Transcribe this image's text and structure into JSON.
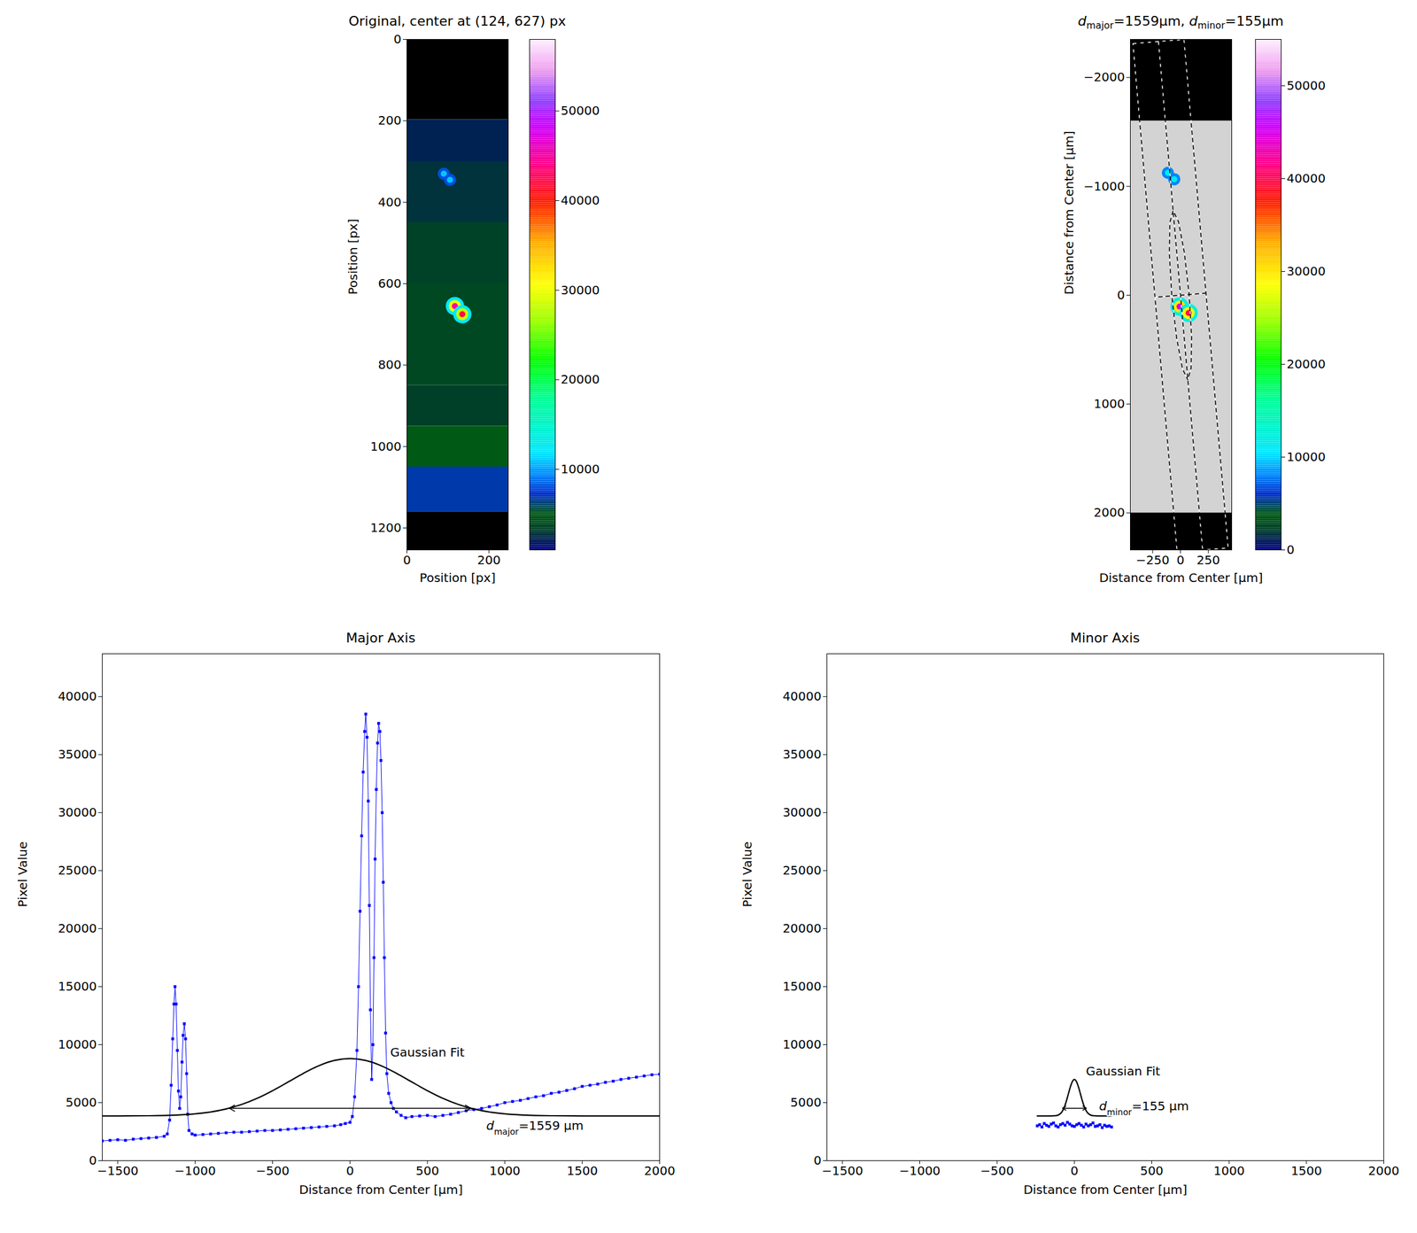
{
  "chart_data": [
    {
      "type": "image",
      "title": "Original, center at (124, 627) px",
      "x_label": "Position [px]",
      "y_label": "Position [px]",
      "xlim": [
        0,
        247
      ],
      "ylim": [
        1254,
        0
      ],
      "xticks": [
        0,
        200
      ],
      "yticks": [
        0,
        200,
        400,
        600,
        800,
        1000,
        1200
      ],
      "regions": [
        {
          "y": [
            0,
            197
          ],
          "color": "black"
        },
        {
          "y": [
            1160,
            1254
          ],
          "color": "black"
        }
      ],
      "background": [
        {
          "y": [
            197,
            300
          ],
          "value": 2200
        },
        {
          "y": [
            300,
            450
          ],
          "value": 2800
        },
        {
          "y": [
            450,
            600
          ],
          "value": 3400
        },
        {
          "y": [
            600,
            850
          ],
          "value": 3800
        },
        {
          "y": [
            850,
            950
          ],
          "value": 3300
        },
        {
          "y": [
            950,
            1050
          ],
          "value": 5000
        },
        {
          "y": [
            1050,
            1160
          ],
          "value": 6800
        }
      ],
      "spots": [
        {
          "x": 90,
          "y": 330,
          "rings": [
            8000,
            11000
          ]
        },
        {
          "x": 105,
          "y": 345,
          "rings": [
            8000,
            11000
          ]
        },
        {
          "x": 117,
          "y": 655,
          "rings": [
            12000,
            30000,
            45000
          ]
        },
        {
          "x": 135,
          "y": 675,
          "rings": [
            12000,
            28000,
            42000
          ]
        }
      ],
      "colorbar": {
        "range": [
          1000,
          58000
        ],
        "ticks": [
          10000,
          20000,
          30000,
          40000,
          50000
        ]
      }
    },
    {
      "type": "image",
      "title": [
        {
          "math": "d",
          "sub": "major"
        },
        "=1559µm, ",
        {
          "math": "d",
          "sub": "minor"
        },
        "=155µm"
      ],
      "x_label": "Distance from Center [µm]",
      "y_label": "Distance from Center [µm]",
      "xlim": [
        -450,
        460
      ],
      "ylim": [
        2340,
        -2350
      ],
      "xticks": [
        -250,
        0,
        250
      ],
      "yticks": [
        -2000,
        -1000,
        0,
        1000,
        2000
      ],
      "regions": [
        {
          "y": [
            -2350,
            -1600
          ],
          "color": "black"
        },
        {
          "y": [
            -1600,
            2000
          ],
          "color": "lightgray"
        },
        {
          "y": [
            2000,
            2340
          ],
          "color": "black"
        }
      ],
      "spots": [
        {
          "x": -113,
          "y": -1124,
          "rings": [
            8000,
            11000
          ]
        },
        {
          "x": -56,
          "y": -1066,
          "rings": [
            8000,
            11000
          ]
        },
        {
          "x": -8,
          "y": 105,
          "rings": [
            12000,
            30000,
            45000
          ]
        },
        {
          "x": 73,
          "y": 163,
          "rings": [
            12000,
            28000,
            40000
          ]
        }
      ],
      "overlays": [
        {
          "line_style": "dashed",
          "x": [
            -427,
            31,
            428,
            -30,
            -427
          ],
          "y": [
            -2311,
            -2349,
            2321,
            2359,
            -2311
          ]
        },
        {
          "line_style": "dashed",
          "x": [
            -198,
            199
          ],
          "y": [
            -2330,
            2340
          ]
        },
        {
          "line_style": "dashed",
          "x": [
            -229,
            229
          ],
          "y": [
            19,
            -19
          ]
        },
        {
          "line_style": "dashed",
          "x": [
            65.5,
            95.5,
            100,
            77.7,
            34.4,
            -17.9,
            -65.5,
            -95.5,
            -100,
            -77.7,
            -34.4,
            17.9,
            65.5
          ],
          "y": [
            777,
            669.5,
            383,
            -6.6,
            -394,
            -676,
            -777,
            -669.5,
            -383,
            6.6,
            394,
            676,
            777
          ]
        }
      ],
      "colorbar": {
        "range": [
          0,
          55000
        ],
        "ticks": [
          0,
          10000,
          20000,
          30000,
          40000,
          50000
        ]
      }
    },
    {
      "type": "line",
      "title": "Major Axis",
      "x_label": "Distance from Center [µm]",
      "y_label": "Pixel Value",
      "xlim": [
        -1600,
        2000
      ],
      "ylim": [
        0,
        43700
      ],
      "xticks": [
        -1500,
        -1000,
        -500,
        0,
        500,
        1000,
        1500,
        2000
      ],
      "yticks": [
        0,
        5000,
        10000,
        15000,
        20000,
        25000,
        30000,
        35000,
        40000
      ],
      "series": [
        {
          "color": "#0000ff",
          "marker": "square",
          "line_style": "solid",
          "x": [
            -1600,
            -1550,
            -1500,
            -1450,
            -1400,
            -1350,
            -1300,
            -1250,
            -1200,
            -1180,
            -1165,
            -1155,
            -1145,
            -1137,
            -1130,
            -1123,
            -1115,
            -1108,
            -1100,
            -1093,
            -1085,
            -1078,
            -1070,
            -1062,
            -1055,
            -1048,
            -1040,
            -1020,
            -1000,
            -950,
            -900,
            -850,
            -800,
            -750,
            -700,
            -650,
            -600,
            -550,
            -500,
            -450,
            -400,
            -350,
            -300,
            -250,
            -200,
            -150,
            -100,
            -60,
            -30,
            0,
            15,
            30,
            45,
            55,
            65,
            75,
            85,
            95,
            102,
            110,
            118,
            125,
            132,
            140,
            148,
            155,
            162,
            170,
            178,
            185,
            193,
            200,
            208,
            215,
            222,
            230,
            238,
            250,
            265,
            280,
            300,
            330,
            360,
            400,
            450,
            500,
            550,
            600,
            650,
            700,
            750,
            800,
            850,
            900,
            950,
            1000,
            1050,
            1100,
            1150,
            1200,
            1250,
            1300,
            1350,
            1400,
            1450,
            1500,
            1550,
            1600,
            1650,
            1700,
            1750,
            1800,
            1850,
            1900,
            1950,
            2000
          ],
          "values": [
            1700,
            1750,
            1800,
            1750,
            1850,
            1900,
            1950,
            2000,
            2100,
            2300,
            3500,
            6500,
            10500,
            13500,
            15000,
            13500,
            9500,
            6000,
            4500,
            5500,
            8500,
            10800,
            11800,
            10500,
            7500,
            4000,
            2600,
            2300,
            2200,
            2250,
            2300,
            2350,
            2400,
            2450,
            2450,
            2500,
            2550,
            2600,
            2600,
            2650,
            2700,
            2750,
            2800,
            2850,
            2900,
            2950,
            3000,
            3100,
            3200,
            3300,
            3800,
            5500,
            9500,
            15000,
            21500,
            28000,
            33500,
            37000,
            38500,
            36500,
            31000,
            22000,
            13000,
            7000,
            10000,
            17500,
            26000,
            32000,
            36000,
            37700,
            37000,
            34500,
            30000,
            24000,
            17500,
            11000,
            7500,
            5800,
            5000,
            4500,
            4200,
            3900,
            3700,
            3800,
            3850,
            3900,
            3800,
            3900,
            4000,
            4150,
            4300,
            4400,
            4500,
            4650,
            4800,
            5000,
            5100,
            5200,
            5350,
            5500,
            5600,
            5800,
            5900,
            6050,
            6200,
            6400,
            6500,
            6600,
            6750,
            6850,
            7000,
            7100,
            7200,
            7300,
            7400,
            7450
          ]
        },
        {
          "color": "#000000",
          "line_style": "solid",
          "x": [
            -1600,
            -1500,
            -1400,
            -1300,
            -1200,
            -1100,
            -1000,
            -900,
            -800,
            -700,
            -600,
            -500,
            -400,
            -300,
            -200,
            -100,
            0,
            100,
            200,
            300,
            400,
            500,
            600,
            700,
            800,
            900,
            1000,
            1100,
            1200,
            1300,
            1400,
            1500,
            1600,
            1700,
            1800,
            1900,
            2000
          ],
          "values": [
            3851,
            3853,
            3858,
            3869,
            3894,
            3943,
            4035,
            4195,
            4454,
            4840,
            5366,
            6028,
            6775,
            7533,
            8191,
            8640,
            8800,
            8640,
            8191,
            7533,
            6775,
            6028,
            5366,
            4840,
            4454,
            4195,
            4035,
            3943,
            3894,
            3869,
            3858,
            3853,
            3851,
            3850,
            3850,
            3850,
            3850
          ]
        }
      ],
      "arrow": {
        "x": [
          -779.5,
          779.5
        ],
        "y": 4520
      },
      "annotations": [
        {
          "x": 260,
          "y": 9300,
          "text": "Gaussian Fit"
        },
        {
          "x": 880,
          "y": 3000,
          "text": [
            {
              "math": "d",
              "sub": "major"
            },
            "=1559 µm"
          ]
        }
      ]
    },
    {
      "type": "line",
      "title": "Minor Axis",
      "x_label": "Distance from Center [µm]",
      "y_label": "Pixel Value",
      "xlim": [
        -1600,
        2000
      ],
      "ylim": [
        0,
        43700
      ],
      "xticks": [
        -1500,
        -1000,
        -500,
        0,
        500,
        1000,
        1500,
        2000
      ],
      "yticks": [
        0,
        5000,
        10000,
        15000,
        20000,
        25000,
        30000,
        35000,
        40000
      ],
      "series": [
        {
          "color": "#0000ff",
          "marker": "square",
          "line_style": "solid",
          "x": [
            -240,
            -225,
            -210,
            -195,
            -180,
            -165,
            -150,
            -135,
            -120,
            -105,
            -90,
            -75,
            -60,
            -45,
            -30,
            -15,
            0,
            15,
            30,
            45,
            60,
            75,
            90,
            105,
            120,
            135,
            150,
            165,
            180,
            195,
            210,
            225,
            240
          ],
          "values": [
            3000,
            3100,
            2900,
            3200,
            3050,
            2950,
            3150,
            3250,
            3000,
            2900,
            3100,
            3200,
            3050,
            3300,
            3150,
            3000,
            2950,
            3100,
            3200,
            3050,
            2900,
            3150,
            3000,
            3100,
            3250,
            2950,
            3000,
            3100,
            2850,
            3050,
            2950,
            3000,
            2900
          ]
        },
        {
          "color": "#000000",
          "line_style": "solid",
          "x": [
            -240,
            -200,
            -150,
            -120,
            -100,
            -90,
            -80,
            -70,
            -60,
            -50,
            -40,
            -30,
            -20,
            -10,
            0,
            10,
            20,
            30,
            40,
            50,
            60,
            70,
            80,
            90,
            100,
            120,
            150,
            200,
            240
          ],
          "values": [
            3850,
            3850,
            3852,
            3876,
            3963,
            4062,
            4224,
            4466,
            4800,
            5220,
            5698,
            6184,
            6607,
            6896,
            7000,
            6896,
            6607,
            6184,
            5698,
            5220,
            4800,
            4466,
            4224,
            4062,
            3963,
            3876,
            3852,
            3850,
            3850
          ]
        }
      ],
      "arrow": {
        "x": [
          -77.5,
          77.5
        ],
        "y": 4520
      },
      "annotations": [
        {
          "x": 75,
          "y": 7700,
          "text": "Gaussian Fit"
        },
        {
          "x": 160,
          "y": 4700,
          "text": [
            {
              "math": "d",
              "sub": "minor"
            },
            "=155 µm"
          ]
        }
      ]
    }
  ]
}
